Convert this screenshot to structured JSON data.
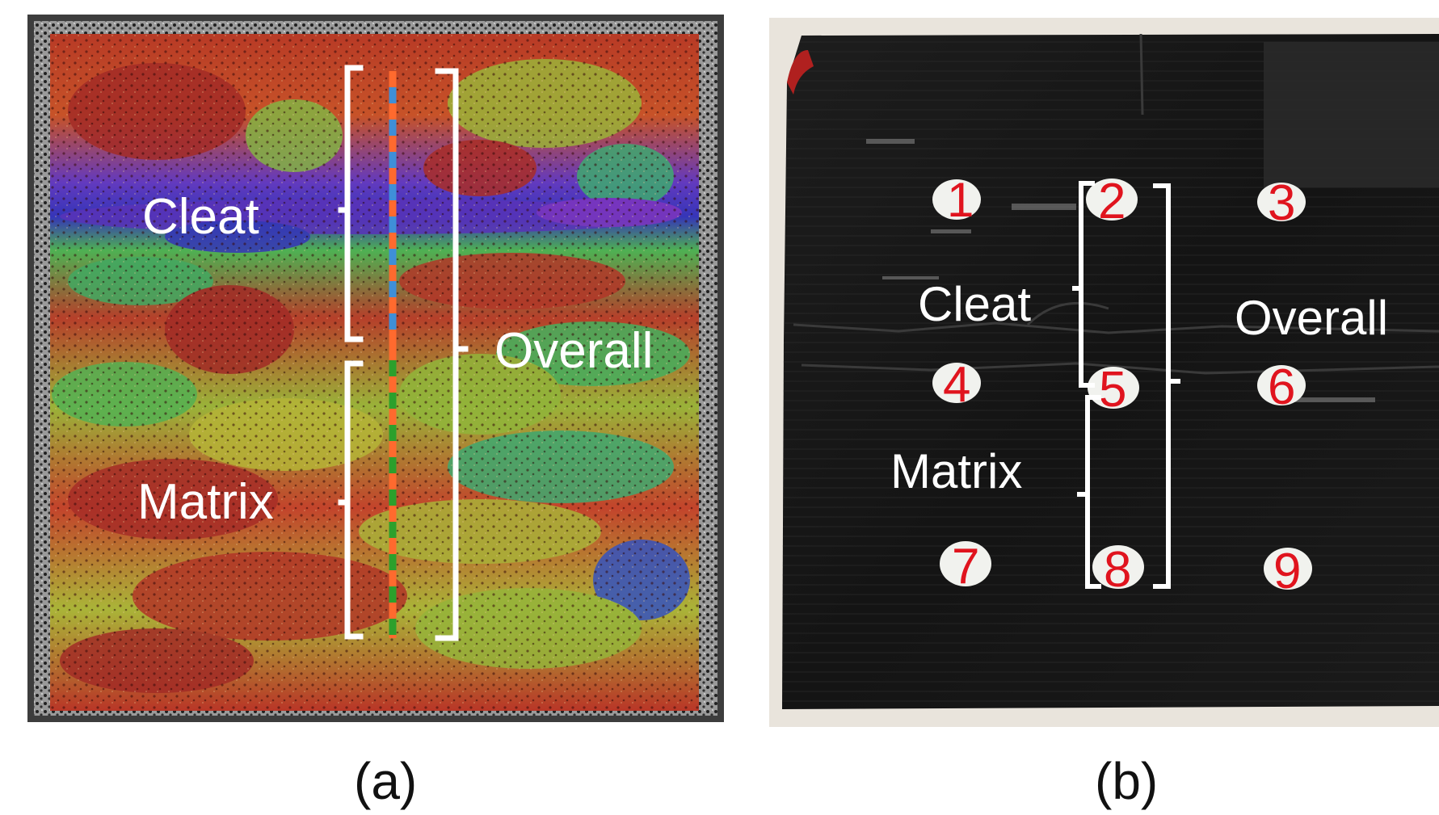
{
  "panel_a": {
    "labels": {
      "cleat": "Cleat",
      "matrix": "Matrix",
      "overall": "Overall"
    },
    "caption": "(a)"
  },
  "panel_b": {
    "labels": {
      "cleat": "Cleat",
      "matrix": "Matrix",
      "overall": "Overall"
    },
    "points": [
      "1",
      "2",
      "3",
      "4",
      "5",
      "6",
      "7",
      "8",
      "9"
    ],
    "caption": "(b)"
  },
  "colors": {
    "annotation": "#ffffff",
    "point_number": "#e0141e",
    "line_orange": "#ff6a2e",
    "line_blue": "#3f8fd8",
    "line_green": "#2ca02c",
    "rock_surface": "#151515",
    "paper_background": "#e9e4dc"
  }
}
